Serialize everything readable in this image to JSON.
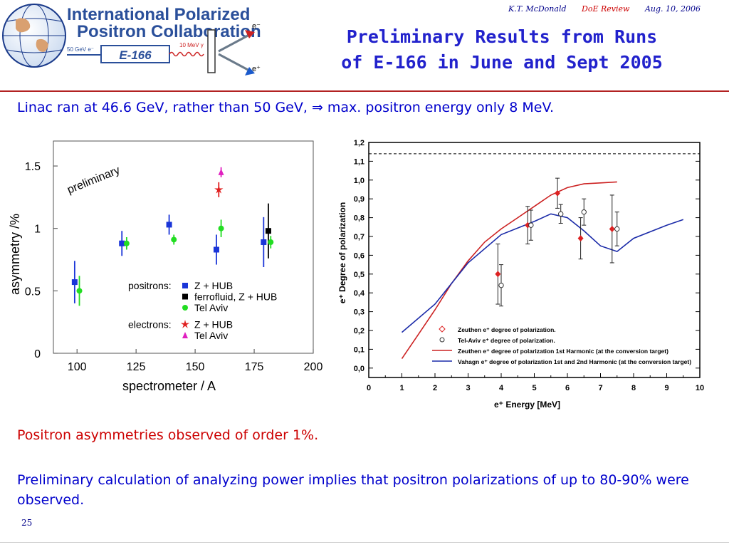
{
  "header": {
    "author": "K.T. McDonald",
    "event": "DoE Review",
    "date": "Aug. 10, 2006"
  },
  "logo": {
    "line1": "International Polarized",
    "line2": "Positron Collaboration",
    "beam_label": "50 GeV e⁻",
    "experiment": "E-166",
    "photon_label": "10 MeV γ",
    "electron": "e⁻",
    "positron": "e⁺"
  },
  "title": {
    "line1": "Preliminary Results from Runs",
    "line2": "of E-166 in June and Sept 2005"
  },
  "linac_text": "Linac ran at 46.6 GeV, rather than 50 GeV, ⇒ max. positron energy only 8 MeV.",
  "observation1": "Positron asymmetries observed of order 1%.",
  "observation2": "Preliminary calculation of analyzing power implies that positron polarizations of up to 80-90% were observed.",
  "page_number": "25",
  "colors": {
    "title": "#2222cc",
    "body_blue": "#0000cc",
    "body_red": "#cc0000",
    "rule": "#b22222",
    "zhub_pos": "#1a35d8",
    "ferro": "#000000",
    "telaviv": "#22dd22",
    "zhub_ele": "#e02020",
    "telaviv_ele": "#e020c0",
    "zeuthen_curve": "#cc2222",
    "vahagn_curve": "#1a2aa8",
    "zeuthen_points": "#dd2222"
  },
  "chart_data": [
    {
      "type": "scatter",
      "title": "",
      "xlabel": "spectrometer / A",
      "ylabel": "asymmetry /%",
      "xlim": [
        90,
        200
      ],
      "ylim": [
        0,
        1.7
      ],
      "xticks": [
        100,
        125,
        150,
        175,
        200
      ],
      "xtick_labels": [
        "100",
        "125",
        "150",
        "175",
        "200"
      ],
      "yticks": [
        0,
        0.5,
        1,
        1.5
      ],
      "ytick_labels": [
        "0",
        "0.5",
        "1",
        "1.5"
      ],
      "annotation": "preliminary",
      "legend_position": "bottom-right",
      "legend_groups": [
        {
          "label": "positrons:",
          "entries": [
            "Z + HUB",
            "ferrofluid, Z + HUB",
            "Tel Aviv"
          ]
        },
        {
          "label": "electrons:",
          "entries": [
            "Z + HUB",
            "Tel Aviv"
          ]
        }
      ],
      "series": [
        {
          "name": "Z + HUB",
          "group": "positrons:",
          "marker": "square",
          "color": "#1a35d8",
          "points": [
            {
              "x": 99,
              "y": 0.57,
              "err": 0.17
            },
            {
              "x": 119,
              "y": 0.88,
              "err": 0.1
            },
            {
              "x": 139,
              "y": 1.03,
              "err": 0.08
            },
            {
              "x": 159,
              "y": 0.83,
              "err": 0.12
            },
            {
              "x": 179,
              "y": 0.89,
              "err": 0.2
            }
          ]
        },
        {
          "name": "ferrofluid, Z + HUB",
          "group": "positrons:",
          "marker": "square",
          "color": "#000000",
          "points": [
            {
              "x": 181,
              "y": 0.98,
              "err": 0.22
            }
          ]
        },
        {
          "name": "Tel Aviv",
          "group": "positrons:",
          "marker": "circle",
          "color": "#22dd22",
          "points": [
            {
              "x": 101,
              "y": 0.5,
              "err": 0.12
            },
            {
              "x": 121,
              "y": 0.88,
              "err": 0.05
            },
            {
              "x": 141,
              "y": 0.91,
              "err": 0.04
            },
            {
              "x": 161,
              "y": 1.0,
              "err": 0.07
            },
            {
              "x": 182,
              "y": 0.89,
              "err": 0.05
            }
          ]
        },
        {
          "name": "Z + HUB",
          "group": "electrons:",
          "marker": "star",
          "color": "#e02020",
          "points": [
            {
              "x": 160,
              "y": 1.31,
              "err": 0.06
            }
          ]
        },
        {
          "name": "Tel Aviv",
          "group": "electrons:",
          "marker": "triangle",
          "color": "#e020c0",
          "points": [
            {
              "x": 161,
              "y": 1.45,
              "err": 0.04
            }
          ]
        }
      ]
    },
    {
      "type": "line",
      "title": "",
      "xlabel": "e⁺ Energy [MeV]",
      "ylabel": "e⁺ Degree of polarization",
      "xlim": [
        0,
        10
      ],
      "ylim": [
        -0.05,
        1.2
      ],
      "xticks": [
        0,
        1,
        2,
        3,
        4,
        5,
        6,
        7,
        8,
        9,
        10
      ],
      "xtick_labels": [
        "0",
        "1",
        "2",
        "3",
        "4",
        "5",
        "6",
        "7",
        "8",
        "9",
        "10"
      ],
      "yticks": [
        0,
        0.1,
        0.2,
        0.3,
        0.4,
        0.5,
        0.6,
        0.7,
        0.8,
        0.9,
        1.0,
        1.1,
        1.2
      ],
      "ytick_labels": [
        "0,0",
        "0,1",
        "0,2",
        "0,3",
        "0,4",
        "0,5",
        "0,6",
        "0,7",
        "0,8",
        "0,9",
        "1,0",
        "1,1",
        "1,2"
      ],
      "reference_line": 1.14,
      "legend_position": "bottom-right",
      "legend": [
        {
          "label": "Zeuthen e⁺ degree of polarization.",
          "marker": "diamond"
        },
        {
          "label": "Tel-Aviv e⁺ degree of polarization.",
          "marker": "circle"
        },
        {
          "label": "Zeuthen e⁺ degree of polarization 1st Harmonic (at the conversion target)",
          "marker": "line"
        },
        {
          "label": "Vahagn e⁺ degree of polarization 1st and 2nd Harmonic (at the conversion target)",
          "marker": "line"
        }
      ],
      "points": [
        {
          "name": "Zeuthen e⁺ degree of polarization.",
          "color": "#dd2222",
          "data": [
            {
              "x": 3.9,
              "y": 0.5,
              "err": 0.16
            },
            {
              "x": 4.8,
              "y": 0.76,
              "err": 0.1
            },
            {
              "x": 5.7,
              "y": 0.93,
              "err": 0.08
            },
            {
              "x": 6.4,
              "y": 0.69,
              "err": 0.11
            },
            {
              "x": 7.35,
              "y": 0.74,
              "err": 0.18
            }
          ]
        },
        {
          "name": "Tel-Aviv e⁺ degree of polarization.",
          "color": "#333333",
          "data": [
            {
              "x": 4.0,
              "y": 0.44,
              "err": 0.11
            },
            {
              "x": 4.9,
              "y": 0.76,
              "err": 0.08
            },
            {
              "x": 5.8,
              "y": 0.82,
              "err": 0.05
            },
            {
              "x": 6.5,
              "y": 0.83,
              "err": 0.07
            },
            {
              "x": 7.5,
              "y": 0.74,
              "err": 0.09
            }
          ]
        }
      ],
      "curves": [
        {
          "name": "Zeuthen e⁺ degree of polarization 1st Harmonic (at the conversion target)",
          "color": "#cc2222",
          "x": [
            1.0,
            1.5,
            2.0,
            2.5,
            3.0,
            3.5,
            4.0,
            4.5,
            5.0,
            5.5,
            6.0,
            6.5,
            7.0,
            7.5
          ],
          "y": [
            0.05,
            0.18,
            0.31,
            0.45,
            0.57,
            0.67,
            0.74,
            0.8,
            0.86,
            0.92,
            0.96,
            0.98,
            0.985,
            0.99
          ]
        },
        {
          "name": "Vahagn e⁺ degree of polarization 1st and 2nd Harmonic (at the conversion target)",
          "color": "#1a2aa8",
          "x": [
            1.0,
            2.0,
            3.0,
            4.0,
            5.0,
            5.5,
            6.0,
            6.5,
            7.0,
            7.5,
            8.0,
            9.0,
            9.5
          ],
          "y": [
            0.19,
            0.34,
            0.56,
            0.71,
            0.78,
            0.82,
            0.8,
            0.73,
            0.65,
            0.62,
            0.69,
            0.76,
            0.79
          ]
        }
      ]
    }
  ]
}
